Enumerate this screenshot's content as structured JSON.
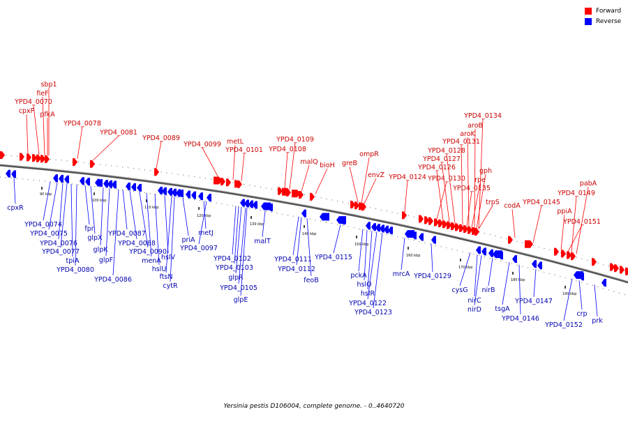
{
  "legend": {
    "forward_label": "Forward",
    "reverse_label": "Reverse",
    "forward_color": "#ff0000",
    "reverse_color": "#0000ff"
  },
  "caption": "Yersinia pestis D106004, complete genome. - 0..4640720",
  "colors": {
    "forward": "#ff0000",
    "reverse": "#0000ff",
    "forward_text": "#cc0000",
    "reverse_text": "#0000b0",
    "backbone": "#555555"
  },
  "ticks": [
    "90 kbp",
    "100 kbp",
    "110 kbp",
    "120 kbp",
    "130 kbp",
    "140 kbp",
    "150 kbp",
    "160 kbp",
    "170 kbp",
    "180 kbp",
    "190 kbp"
  ],
  "forward_genes": [
    "sbp1",
    "fieF",
    "YPD4_0070",
    "cpxP",
    "pfkA",
    "YPD4_0078",
    "YPD4_0081",
    "YPD4_0089",
    "YPD4_0099",
    "metL",
    "YPD4_0101",
    "YPD4_0109",
    "YPD4_0108",
    "malQ",
    "bioH",
    "greB",
    "ompR",
    "envZ",
    "YPD4_0124",
    "YPD4_0134",
    "aroB",
    "aroK",
    "YPD4_0131",
    "YPD4_0128",
    "YPD4_0127",
    "YPD4_0126",
    "YPD4_0130",
    "gph",
    "rpe",
    "YPD4_0135",
    "trpS",
    "codA",
    "YPD4_0145",
    "pabA",
    "YPD4_0149",
    "ppiA",
    "YPD4_0151"
  ],
  "reverse_genes": [
    "cpxR",
    "YPD4_0074",
    "YPD4_0075",
    "YPD4_0076",
    "YPD4_0077",
    "tpiA",
    "YPD4_0080",
    "fpr",
    "glpX",
    "glpK",
    "glpF",
    "YPD4_0086",
    "YPD4_0087",
    "YPD4_0088",
    "YPD4_0090",
    "menA",
    "hslU",
    "hslV",
    "ftsN",
    "cytR",
    "priA",
    "metJ",
    "YPD4_0097",
    "YPD4_0102",
    "YPD4_0103",
    "glpR",
    "YPD4_0105",
    "glpE",
    "malT",
    "YPD4_0111",
    "YPD4_0112",
    "feoB",
    "YPD4_0115",
    "pckA",
    "hslO",
    "hslR",
    "YPD4_0122",
    "YPD4_0123",
    "mrcA",
    "YPD4_0129",
    "cysG",
    "nirC",
    "nirD",
    "nirB",
    "tsgA",
    "YPD4_0146",
    "YPD4_0147",
    "YPD4_0152",
    "crp",
    "prk"
  ]
}
